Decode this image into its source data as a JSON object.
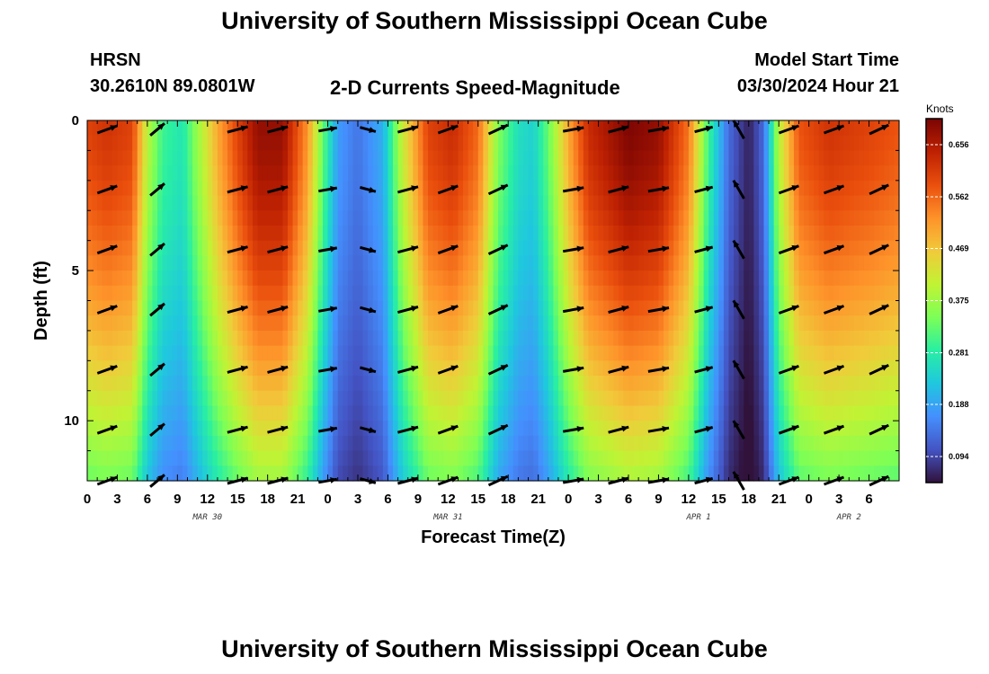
{
  "header": {
    "title_top": "University of Southern Mississippi Ocean Cube",
    "station": "HRSN",
    "coords": "30.2610N  89.0801W",
    "plot_title": "2-D Currents Speed-Magnitude",
    "model_label": "Model Start Time",
    "model_time": "03/30/2024 Hour 21",
    "title_bottom": "University of Southern Mississippi Ocean Cube"
  },
  "chart_data": {
    "type": "heatmap",
    "title": "2-D Currents Speed-Magnitude",
    "xlabel": "Forecast Time(Z)",
    "ylabel": "Depth (ft)",
    "units": "Knots",
    "x_range_hours": [
      0,
      81
    ],
    "y_range_ft": [
      0,
      12
    ],
    "x_ticks": [
      {
        "h": 0,
        "label": "0"
      },
      {
        "h": 3,
        "label": "3"
      },
      {
        "h": 6,
        "label": "6"
      },
      {
        "h": 9,
        "label": "9"
      },
      {
        "h": 12,
        "label": "12"
      },
      {
        "h": 15,
        "label": "15"
      },
      {
        "h": 18,
        "label": "18"
      },
      {
        "h": 21,
        "label": "21"
      },
      {
        "h": 24,
        "label": "0"
      },
      {
        "h": 27,
        "label": "3"
      },
      {
        "h": 30,
        "label": "6"
      },
      {
        "h": 33,
        "label": "9"
      },
      {
        "h": 36,
        "label": "12"
      },
      {
        "h": 39,
        "label": "15"
      },
      {
        "h": 42,
        "label": "18"
      },
      {
        "h": 45,
        "label": "21"
      },
      {
        "h": 48,
        "label": "0"
      },
      {
        "h": 51,
        "label": "3"
      },
      {
        "h": 54,
        "label": "6"
      },
      {
        "h": 57,
        "label": "9"
      },
      {
        "h": 60,
        "label": "12"
      },
      {
        "h": 63,
        "label": "15"
      },
      {
        "h": 66,
        "label": "18"
      },
      {
        "h": 69,
        "label": "21"
      },
      {
        "h": 72,
        "label": "0"
      },
      {
        "h": 75,
        "label": "3"
      },
      {
        "h": 78,
        "label": "6"
      }
    ],
    "day_labels": [
      {
        "h": 12,
        "label": "MAR 30"
      },
      {
        "h": 36,
        "label": "MAR 31"
      },
      {
        "h": 61,
        "label": "APR 1"
      },
      {
        "h": 76,
        "label": "APR 2"
      }
    ],
    "y_ticks": [
      {
        "ft": 0,
        "label": "0"
      },
      {
        "ft": 5,
        "label": "5"
      },
      {
        "ft": 10,
        "label": "10"
      }
    ],
    "colorbar": {
      "min": 0.047,
      "max": 0.703,
      "ticks": [
        0.094,
        0.188,
        0.281,
        0.375,
        0.469,
        0.562,
        0.656
      ],
      "tick_labels": [
        "0.094",
        "0.188",
        "0.281",
        "0.375",
        "0.469",
        "0.562",
        "0.656"
      ],
      "stops": [
        "#30123b",
        "#4454c4",
        "#4490fe",
        "#1fc8de",
        "#29efa2",
        "#7dff56",
        "#c1f334",
        "#f1ca3a",
        "#fe922a",
        "#ea4f0d",
        "#be2102",
        "#7a0403"
      ]
    },
    "surface_speed_profile": [
      {
        "h": 0,
        "v": 0.6
      },
      {
        "h": 2,
        "v": 0.62
      },
      {
        "h": 4.5,
        "v": 0.6
      },
      {
        "h": 6,
        "v": 0.4
      },
      {
        "h": 7.5,
        "v": 0.3
      },
      {
        "h": 9.5,
        "v": 0.27
      },
      {
        "h": 11,
        "v": 0.37
      },
      {
        "h": 13,
        "v": 0.5
      },
      {
        "h": 15,
        "v": 0.6
      },
      {
        "h": 17,
        "v": 0.68
      },
      {
        "h": 19.5,
        "v": 0.68
      },
      {
        "h": 22,
        "v": 0.52
      },
      {
        "h": 23.5,
        "v": 0.33
      },
      {
        "h": 25,
        "v": 0.18
      },
      {
        "h": 27,
        "v": 0.14
      },
      {
        "h": 29.5,
        "v": 0.2
      },
      {
        "h": 31.5,
        "v": 0.42
      },
      {
        "h": 34,
        "v": 0.6
      },
      {
        "h": 36.5,
        "v": 0.63
      },
      {
        "h": 39,
        "v": 0.56
      },
      {
        "h": 41,
        "v": 0.35
      },
      {
        "h": 43,
        "v": 0.26
      },
      {
        "h": 44.5,
        "v": 0.24
      },
      {
        "h": 46,
        "v": 0.33
      },
      {
        "h": 48,
        "v": 0.5
      },
      {
        "h": 50,
        "v": 0.63
      },
      {
        "h": 54,
        "v": 0.7
      },
      {
        "h": 57,
        "v": 0.68
      },
      {
        "h": 60,
        "v": 0.55
      },
      {
        "h": 62,
        "v": 0.3
      },
      {
        "h": 64,
        "v": 0.13
      },
      {
        "h": 66,
        "v": 0.06
      },
      {
        "h": 67.5,
        "v": 0.13
      },
      {
        "h": 69,
        "v": 0.4
      },
      {
        "h": 71,
        "v": 0.58
      },
      {
        "h": 74,
        "v": 0.62
      },
      {
        "h": 78,
        "v": 0.6
      },
      {
        "h": 81,
        "v": 0.58
      }
    ],
    "vectors": {
      "depth_rows_ft": [
        0.3,
        2.3,
        4.3,
        6.3,
        8.3,
        10.3,
        12.0
      ],
      "columns": [
        {
          "h": 2,
          "deg": 20,
          "len": 0.9
        },
        {
          "h": 7,
          "deg": 40,
          "len": 0.8
        },
        {
          "h": 15,
          "deg": 15,
          "len": 0.9
        },
        {
          "h": 19,
          "deg": 15,
          "len": 0.9
        },
        {
          "h": 24,
          "deg": 10,
          "len": 0.8
        },
        {
          "h": 28,
          "deg": -15,
          "len": 0.7
        },
        {
          "h": 32,
          "deg": 15,
          "len": 0.9
        },
        {
          "h": 36,
          "deg": 20,
          "len": 0.9
        },
        {
          "h": 41,
          "deg": 25,
          "len": 0.9
        },
        {
          "h": 48.5,
          "deg": 10,
          "len": 0.9
        },
        {
          "h": 53,
          "deg": 15,
          "len": 0.9
        },
        {
          "h": 57,
          "deg": 10,
          "len": 0.9
        },
        {
          "h": 61.5,
          "deg": 15,
          "len": 0.8
        },
        {
          "h": 65,
          "deg": 120,
          "len": 0.9
        },
        {
          "h": 70,
          "deg": 20,
          "len": 0.9
        },
        {
          "h": 74.5,
          "deg": 20,
          "len": 0.9
        },
        {
          "h": 79,
          "deg": 25,
          "len": 0.9
        }
      ]
    }
  }
}
